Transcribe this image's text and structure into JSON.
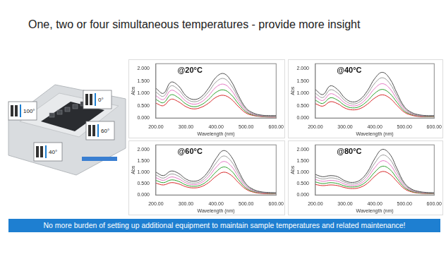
{
  "title": "One, two or four simultaneous temperatures - provide more insight",
  "banner": "No more burden of setting up additional equipment to maintain sample temperatures and related maintenance!",
  "instrument_labels": [
    "100°",
    "0°",
    "60°",
    "40°"
  ],
  "chart_data": [
    {
      "type": "line",
      "title": "@20°C",
      "x_label": "Wavelength (nm)",
      "y_label": "Abs",
      "grid": false,
      "x": [
        200,
        225,
        250,
        275,
        300,
        325,
        350,
        375,
        400,
        425,
        450,
        475,
        500,
        525,
        550,
        575,
        600
      ],
      "xlim": [
        200,
        600
      ],
      "xticks": [
        {
          "value": 200,
          "label": "200.00"
        },
        {
          "value": 300,
          "label": "300.00"
        },
        {
          "value": 400,
          "label": "400.00"
        },
        {
          "value": 500,
          "label": "500.00"
        },
        {
          "value": 600,
          "label": "600.00"
        }
      ],
      "ylim": [
        0,
        2.2
      ],
      "yticks": [
        {
          "value": 0,
          "label": "0.000"
        },
        {
          "value": 0.5,
          "label": "0.500"
        },
        {
          "value": 1,
          "label": "1.000"
        },
        {
          "value": 1.5,
          "label": "1.500"
        },
        {
          "value": 2,
          "label": "2.000"
        }
      ],
      "series": [
        {
          "color": "#4d4d4d",
          "values": [
            1.2,
            1.0,
            1.45,
            1.3,
            0.9,
            0.75,
            0.85,
            1.2,
            1.65,
            1.8,
            1.5,
            0.9,
            0.4,
            0.2,
            0.12,
            0.1,
            0.1
          ]
        },
        {
          "color": "#9a9a9a",
          "values": [
            1.05,
            0.88,
            1.3,
            1.15,
            0.8,
            0.66,
            0.75,
            1.06,
            1.46,
            1.6,
            1.33,
            0.8,
            0.35,
            0.17,
            0.1,
            0.08,
            0.08
          ]
        },
        {
          "color": "#e377c2",
          "values": [
            0.9,
            0.75,
            1.12,
            0.98,
            0.68,
            0.56,
            0.64,
            0.9,
            1.25,
            1.37,
            1.14,
            0.68,
            0.3,
            0.14,
            0.08,
            0.06,
            0.06
          ]
        },
        {
          "color": "#2ca02c",
          "values": [
            0.75,
            0.62,
            0.94,
            0.82,
            0.57,
            0.46,
            0.53,
            0.75,
            1.04,
            1.14,
            0.95,
            0.57,
            0.25,
            0.12,
            0.07,
            0.05,
            0.05
          ]
        },
        {
          "color": "#d62728",
          "values": [
            0.6,
            0.5,
            0.76,
            0.66,
            0.46,
            0.37,
            0.43,
            0.6,
            0.84,
            0.92,
            0.77,
            0.46,
            0.2,
            0.1,
            0.06,
            0.04,
            0.04
          ]
        }
      ]
    },
    {
      "type": "line",
      "title": "@40°C",
      "x_label": "Wavelength (nm)",
      "y_label": "Abs",
      "grid": false,
      "x": [
        200,
        225,
        250,
        275,
        300,
        325,
        350,
        375,
        400,
        425,
        450,
        475,
        500,
        525,
        550,
        575,
        600
      ],
      "xlim": [
        200,
        600
      ],
      "xticks": [
        {
          "value": 200,
          "label": "200.00"
        },
        {
          "value": 300,
          "label": "300.00"
        },
        {
          "value": 400,
          "label": "400.00"
        },
        {
          "value": 500,
          "label": "500.00"
        },
        {
          "value": 600,
          "label": "600.00"
        }
      ],
      "ylim": [
        0,
        2.2
      ],
      "yticks": [
        {
          "value": 0,
          "label": "0.000"
        },
        {
          "value": 0.5,
          "label": "0.500"
        },
        {
          "value": 1,
          "label": "1.000"
        },
        {
          "value": 1.5,
          "label": "1.500"
        },
        {
          "value": 2,
          "label": "2.000"
        }
      ],
      "series": [
        {
          "color": "#4d4d4d",
          "values": [
            1.15,
            0.95,
            1.3,
            1.15,
            0.8,
            0.65,
            0.75,
            1.1,
            1.6,
            1.85,
            1.6,
            1.0,
            0.45,
            0.22,
            0.13,
            0.1,
            0.1
          ]
        },
        {
          "color": "#9a9a9a",
          "values": [
            1.0,
            0.83,
            1.14,
            1.01,
            0.7,
            0.57,
            0.66,
            0.97,
            1.41,
            1.63,
            1.41,
            0.88,
            0.4,
            0.19,
            0.11,
            0.08,
            0.08
          ]
        },
        {
          "color": "#e377c2",
          "values": [
            0.86,
            0.71,
            0.98,
            0.86,
            0.6,
            0.49,
            0.56,
            0.83,
            1.2,
            1.39,
            1.2,
            0.75,
            0.34,
            0.16,
            0.09,
            0.07,
            0.07
          ]
        },
        {
          "color": "#2ca02c",
          "values": [
            0.72,
            0.59,
            0.82,
            0.72,
            0.5,
            0.41,
            0.47,
            0.69,
            1.0,
            1.16,
            1.0,
            0.63,
            0.28,
            0.14,
            0.08,
            0.06,
            0.06
          ]
        },
        {
          "color": "#d62728",
          "values": [
            0.58,
            0.48,
            0.66,
            0.58,
            0.4,
            0.33,
            0.38,
            0.56,
            0.81,
            0.94,
            0.81,
            0.51,
            0.23,
            0.11,
            0.06,
            0.05,
            0.05
          ]
        }
      ]
    },
    {
      "type": "line",
      "title": "@60°C",
      "x_label": "Wavelength (nm)",
      "y_label": "Abs",
      "grid": false,
      "x": [
        200,
        225,
        250,
        275,
        300,
        325,
        350,
        375,
        400,
        425,
        450,
        475,
        500,
        525,
        550,
        575,
        600
      ],
      "xlim": [
        200,
        600
      ],
      "xticks": [
        {
          "value": 200,
          "label": "200.00"
        },
        {
          "value": 300,
          "label": "300.00"
        },
        {
          "value": 400,
          "label": "400.00"
        },
        {
          "value": 500,
          "label": "500.00"
        },
        {
          "value": 600,
          "label": "600.00"
        }
      ],
      "ylim": [
        0,
        2.2
      ],
      "yticks": [
        {
          "value": 0,
          "label": "0.000"
        },
        {
          "value": 0.5,
          "label": "0.500"
        },
        {
          "value": 1,
          "label": "1.000"
        },
        {
          "value": 1.5,
          "label": "1.500"
        },
        {
          "value": 2,
          "label": "2.000"
        }
      ],
      "series": [
        {
          "color": "#4d4d4d",
          "values": [
            1.0,
            0.85,
            1.05,
            0.95,
            0.7,
            0.6,
            0.7,
            1.05,
            1.6,
            1.95,
            1.7,
            1.05,
            0.48,
            0.24,
            0.14,
            0.11,
            0.1
          ]
        },
        {
          "color": "#9a9a9a",
          "values": [
            0.88,
            0.74,
            0.92,
            0.83,
            0.61,
            0.52,
            0.61,
            0.92,
            1.4,
            1.71,
            1.49,
            0.92,
            0.42,
            0.21,
            0.12,
            0.09,
            0.08
          ]
        },
        {
          "color": "#e377c2",
          "values": [
            0.76,
            0.64,
            0.79,
            0.71,
            0.53,
            0.45,
            0.53,
            0.79,
            1.21,
            1.47,
            1.28,
            0.79,
            0.36,
            0.18,
            0.1,
            0.08,
            0.07
          ]
        },
        {
          "color": "#2ca02c",
          "values": [
            0.64,
            0.54,
            0.66,
            0.6,
            0.44,
            0.38,
            0.44,
            0.66,
            1.01,
            1.23,
            1.07,
            0.66,
            0.3,
            0.15,
            0.09,
            0.07,
            0.06
          ]
        },
        {
          "color": "#d62728",
          "values": [
            0.52,
            0.44,
            0.54,
            0.49,
            0.36,
            0.31,
            0.36,
            0.54,
            0.82,
            1.0,
            0.87,
            0.54,
            0.25,
            0.12,
            0.07,
            0.05,
            0.05
          ]
        }
      ]
    },
    {
      "type": "line",
      "title": "@80°C",
      "x_label": "Wavelength (nm)",
      "y_label": "Abs",
      "grid": false,
      "x": [
        200,
        225,
        250,
        275,
        300,
        325,
        350,
        375,
        400,
        425,
        450,
        475,
        500,
        525,
        550,
        575,
        600
      ],
      "xlim": [
        200,
        600
      ],
      "xticks": [
        {
          "value": 200,
          "label": "200.00"
        },
        {
          "value": 300,
          "label": "300.00"
        },
        {
          "value": 400,
          "label": "400.00"
        },
        {
          "value": 500,
          "label": "500.00"
        },
        {
          "value": 600,
          "label": "600.00"
        }
      ],
      "ylim": [
        0,
        2.2
      ],
      "yticks": [
        {
          "value": 0,
          "label": "0.000"
        },
        {
          "value": 0.5,
          "label": "0.500"
        },
        {
          "value": 1,
          "label": "1.000"
        },
        {
          "value": 1.5,
          "label": "1.500"
        },
        {
          "value": 2,
          "label": "2.000"
        }
      ],
      "series": [
        {
          "color": "#4d4d4d",
          "values": [
            0.9,
            0.8,
            0.85,
            0.8,
            0.62,
            0.55,
            0.65,
            1.0,
            1.6,
            2.0,
            1.8,
            1.15,
            0.52,
            0.25,
            0.15,
            0.11,
            0.1
          ]
        },
        {
          "color": "#9a9a9a",
          "values": [
            0.79,
            0.7,
            0.75,
            0.7,
            0.55,
            0.48,
            0.57,
            0.88,
            1.4,
            1.75,
            1.58,
            1.01,
            0.46,
            0.22,
            0.13,
            0.09,
            0.08
          ]
        },
        {
          "color": "#e377c2",
          "values": [
            0.68,
            0.6,
            0.64,
            0.6,
            0.47,
            0.41,
            0.49,
            0.75,
            1.2,
            1.5,
            1.35,
            0.86,
            0.39,
            0.19,
            0.11,
            0.08,
            0.07
          ]
        },
        {
          "color": "#2ca02c",
          "values": [
            0.57,
            0.5,
            0.54,
            0.5,
            0.39,
            0.35,
            0.41,
            0.63,
            1.0,
            1.26,
            1.13,
            0.72,
            0.33,
            0.16,
            0.09,
            0.07,
            0.06
          ]
        },
        {
          "color": "#d62728",
          "values": [
            0.46,
            0.41,
            0.44,
            0.41,
            0.32,
            0.28,
            0.33,
            0.51,
            0.82,
            1.03,
            0.92,
            0.59,
            0.27,
            0.13,
            0.08,
            0.06,
            0.05
          ]
        }
      ]
    }
  ]
}
